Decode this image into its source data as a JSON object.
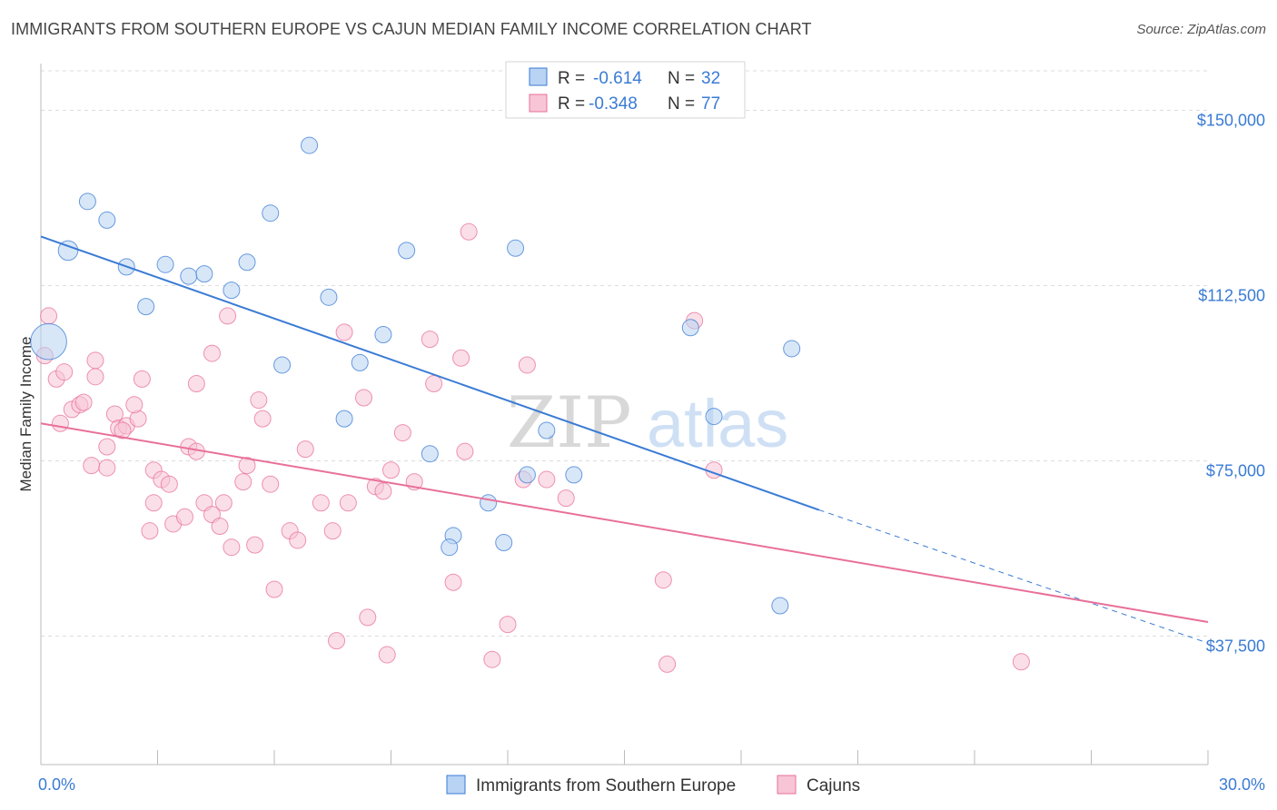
{
  "title": "IMMIGRANTS FROM SOUTHERN EUROPE VS CAJUN MEDIAN FAMILY INCOME CORRELATION CHART",
  "source": "Source: ZipAtlas.com",
  "watermark": {
    "zip": "ZIP",
    "atlas": "atlas"
  },
  "colors": {
    "blue": "#3a7bd5",
    "pink": "#e8709a",
    "blue_fill": "#b8d3f3",
    "pink_fill": "#f8c5d6",
    "grid": "#dddddd"
  },
  "stats": [
    {
      "r_label": "R =",
      "r_value": "-0.614",
      "n_label": "N =",
      "n_value": "32"
    },
    {
      "r_label": "R =",
      "r_value": "-0.348",
      "n_label": "N =",
      "n_value": "77"
    }
  ],
  "chart_data": {
    "type": "scatter",
    "ylabel": "Median Family Income",
    "xlim": [
      0,
      30
    ],
    "ylim": [
      10000,
      160000
    ],
    "x_ticks": [
      {
        "value": 0,
        "label": "0.0%"
      },
      {
        "value": 30,
        "label": "30.0%"
      }
    ],
    "y_ticks": [
      {
        "value": 37500,
        "label": "$37,500"
      },
      {
        "value": 75000,
        "label": "$75,000"
      },
      {
        "value": 112500,
        "label": "$112,500"
      },
      {
        "value": 150000,
        "label": "$150,000"
      }
    ],
    "legend_position": "bottom-center",
    "series": [
      {
        "name": "Immigrants from Southern Europe",
        "color": "#3a7bd5",
        "trend": {
          "x0": 0,
          "y0": 123000,
          "x1": 20.0,
          "y1": 64500,
          "dash_to_x": 30.0,
          "dash_to_y": 36000
        },
        "points": [
          [
            0.2,
            100500,
            2.2
          ],
          [
            1.2,
            130500,
            1
          ],
          [
            1.7,
            126500,
            1
          ],
          [
            0.7,
            120000,
            1.2
          ],
          [
            2.2,
            116500,
            1
          ],
          [
            3.2,
            117000,
            1
          ],
          [
            3.8,
            114500,
            1
          ],
          [
            4.2,
            115000,
            1
          ],
          [
            4.9,
            111500,
            1
          ],
          [
            2.7,
            108000,
            1
          ],
          [
            5.3,
            117500,
            1
          ],
          [
            5.9,
            128000,
            1
          ],
          [
            6.9,
            142500,
            1
          ],
          [
            7.4,
            110000,
            1
          ],
          [
            8.8,
            102000,
            1
          ],
          [
            9.4,
            120000,
            1
          ],
          [
            12.2,
            120500,
            1
          ],
          [
            6.2,
            95500,
            1
          ],
          [
            8.2,
            96000,
            1
          ],
          [
            7.8,
            84000,
            1
          ],
          [
            13.0,
            81500,
            1
          ],
          [
            10.0,
            76500,
            1
          ],
          [
            12.5,
            72000,
            1
          ],
          [
            13.7,
            72000,
            1
          ],
          [
            11.5,
            66000,
            1
          ],
          [
            10.6,
            59000,
            1
          ],
          [
            10.5,
            56500,
            1
          ],
          [
            11.9,
            57500,
            1
          ],
          [
            16.7,
            103500,
            1
          ],
          [
            17.3,
            84500,
            1
          ],
          [
            19.3,
            99000,
            1
          ],
          [
            19.0,
            44000,
            1
          ]
        ]
      },
      {
        "name": "Cajuns",
        "color": "#e8709a",
        "trend": {
          "x0": 0,
          "y0": 83000,
          "x1": 30.0,
          "y1": 40500
        },
        "points": [
          [
            0.2,
            106000,
            1
          ],
          [
            0.1,
            97500,
            1
          ],
          [
            0.4,
            92500,
            1
          ],
          [
            0.6,
            94000,
            1
          ],
          [
            0.8,
            86000,
            1
          ],
          [
            1.0,
            87000,
            1
          ],
          [
            0.5,
            83000,
            1
          ],
          [
            1.1,
            87500,
            1
          ],
          [
            1.4,
            93000,
            1
          ],
          [
            1.4,
            96500,
            1
          ],
          [
            1.9,
            85000,
            1
          ],
          [
            2.0,
            82000,
            1
          ],
          [
            2.2,
            82500,
            1
          ],
          [
            2.5,
            84000,
            1
          ],
          [
            2.4,
            87000,
            1
          ],
          [
            2.6,
            92500,
            1
          ],
          [
            1.7,
            78000,
            1
          ],
          [
            1.3,
            74000,
            1
          ],
          [
            1.7,
            73500,
            1
          ],
          [
            2.9,
            73000,
            1
          ],
          [
            3.1,
            71000,
            1
          ],
          [
            3.3,
            70000,
            1
          ],
          [
            2.9,
            66000,
            1
          ],
          [
            2.8,
            60000,
            1
          ],
          [
            3.4,
            61500,
            1
          ],
          [
            3.7,
            63000,
            1
          ],
          [
            3.8,
            78000,
            1
          ],
          [
            4.0,
            77000,
            1
          ],
          [
            4.2,
            66000,
            1
          ],
          [
            4.4,
            63500,
            1
          ],
          [
            4.6,
            61000,
            1
          ],
          [
            4.7,
            66000,
            1
          ],
          [
            4.0,
            91500,
            1
          ],
          [
            4.4,
            98000,
            1
          ],
          [
            4.8,
            106000,
            1
          ],
          [
            5.3,
            74000,
            1
          ],
          [
            5.2,
            70500,
            1
          ],
          [
            4.9,
            56500,
            1
          ],
          [
            5.5,
            57000,
            1
          ],
          [
            5.6,
            88000,
            1
          ],
          [
            5.7,
            84000,
            1
          ],
          [
            5.9,
            70000,
            1
          ],
          [
            6.0,
            47500,
            1
          ],
          [
            6.4,
            60000,
            1
          ],
          [
            6.6,
            58000,
            1
          ],
          [
            6.8,
            77500,
            1
          ],
          [
            7.2,
            66000,
            1
          ],
          [
            7.5,
            60000,
            1
          ],
          [
            7.6,
            36500,
            1
          ],
          [
            7.8,
            102500,
            1
          ],
          [
            7.9,
            66000,
            1
          ],
          [
            8.3,
            88500,
            1
          ],
          [
            8.6,
            69500,
            1
          ],
          [
            8.8,
            68500,
            1
          ],
          [
            8.4,
            41500,
            1
          ],
          [
            8.9,
            33500,
            1
          ],
          [
            9.0,
            73000,
            1
          ],
          [
            9.3,
            81000,
            1
          ],
          [
            9.6,
            70500,
            1
          ],
          [
            10.0,
            101000,
            1
          ],
          [
            10.1,
            91500,
            1
          ],
          [
            10.8,
            97000,
            1
          ],
          [
            10.6,
            49000,
            1
          ],
          [
            10.9,
            77000,
            1
          ],
          [
            11.0,
            124000,
            1
          ],
          [
            11.6,
            32500,
            1
          ],
          [
            12.0,
            40000,
            1
          ],
          [
            12.4,
            71000,
            1
          ],
          [
            12.5,
            95500,
            1
          ],
          [
            13.0,
            71000,
            1
          ],
          [
            16.0,
            49500,
            1
          ],
          [
            16.1,
            31500,
            1
          ],
          [
            16.8,
            105000,
            1
          ],
          [
            17.3,
            73000,
            1
          ],
          [
            25.2,
            32000,
            1
          ],
          [
            13.5,
            67000,
            1
          ],
          [
            2.1,
            81500,
            1
          ]
        ]
      }
    ]
  }
}
